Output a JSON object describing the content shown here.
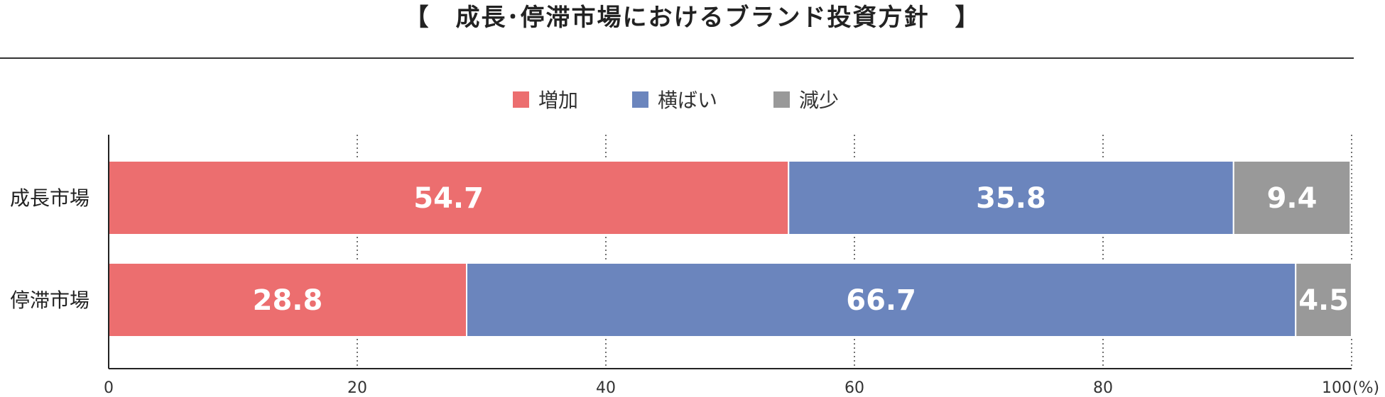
{
  "title": "【　成長･停滞市場におけるブランド投資方針　】",
  "legend": [
    {
      "label": "増加",
      "color": "#ec6e6f"
    },
    {
      "label": "横ばい",
      "color": "#6b85bd"
    },
    {
      "label": "減少",
      "color": "#999999"
    }
  ],
  "chart_data": {
    "type": "bar",
    "orientation": "horizontal",
    "stacked": true,
    "title": "【　成長･停滞市場におけるブランド投資方針　】",
    "categories": [
      "成長市場",
      "停滞市場"
    ],
    "series": [
      {
        "name": "増加",
        "values": [
          54.7,
          28.8
        ],
        "color": "#ec6e6f"
      },
      {
        "name": "横ばい",
        "values": [
          35.8,
          66.7
        ],
        "color": "#6b85bd"
      },
      {
        "name": "減少",
        "values": [
          9.4,
          4.5
        ],
        "color": "#999999"
      }
    ],
    "xlim": [
      0,
      100
    ],
    "xticks": [
      0,
      20,
      40,
      60,
      80,
      100
    ],
    "xtick_labels": [
      "0",
      "20",
      "40",
      "60",
      "80",
      "100"
    ],
    "xunit": "(%)",
    "grid": "dotted vertical",
    "legend_position": "top-center"
  }
}
